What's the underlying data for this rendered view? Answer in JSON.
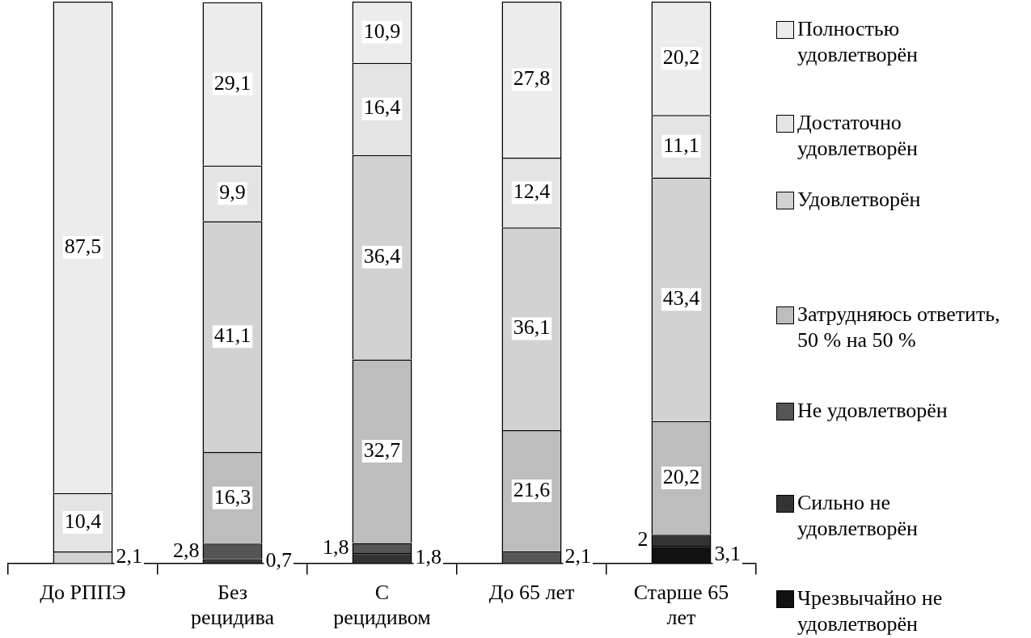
{
  "chart_data": {
    "type": "bar",
    "stacked": true,
    "legend": "right",
    "categories": [
      "До РППЭ",
      "Без рецидива",
      "С рецидивом",
      "До 65 лет",
      "Старше 65 лет"
    ],
    "series": [
      {
        "name": "Чрезвычайно не удовлетворён",
        "color": "#111111",
        "values": [
          null,
          null,
          null,
          null,
          3.1
        ],
        "value_labels": [
          null,
          null,
          null,
          null,
          "3,1"
        ]
      },
      {
        "name": "Сильно не удовлетворён",
        "color": "#333333",
        "values": [
          null,
          0.7,
          1.8,
          null,
          2
        ],
        "value_labels": [
          null,
          "0,7",
          "1,8",
          null,
          "2"
        ]
      },
      {
        "name": "Не удовлетворён",
        "color": "#555555",
        "values": [
          null,
          2.8,
          1.8,
          2.1,
          null
        ],
        "value_labels": [
          null,
          "2,8",
          "1,8",
          "2,1",
          null
        ]
      },
      {
        "name": "Затрудняюсь ответить, 50 % на 50 %",
        "color": "#bdbdbd",
        "values": [
          null,
          16.3,
          32.7,
          21.6,
          20.2
        ],
        "value_labels": [
          null,
          "16,3",
          "32,7",
          "21,6",
          "20,2"
        ]
      },
      {
        "name": "Удовлетворён",
        "color": "#d2d2d2",
        "values": [
          2.1,
          41.1,
          36.4,
          36.1,
          43.4
        ],
        "value_labels": [
          "2,1",
          "41,1",
          "36,4",
          "36,1",
          "43,4"
        ]
      },
      {
        "name": "Достаточно удовлетворён",
        "color": "#e4e4e4",
        "values": [
          10.4,
          9.9,
          16.4,
          12.4,
          11.1
        ],
        "value_labels": [
          "10,4",
          "9,9",
          "16,4",
          "12,4",
          "11,1"
        ]
      },
      {
        "name": "Полностью удовлетворён",
        "color": "#ececec",
        "values": [
          87.5,
          29.1,
          10.9,
          27.8,
          20.2
        ],
        "value_labels": [
          "87,5",
          "29,1",
          "10,9",
          "27,8",
          "20,2"
        ]
      }
    ]
  }
}
